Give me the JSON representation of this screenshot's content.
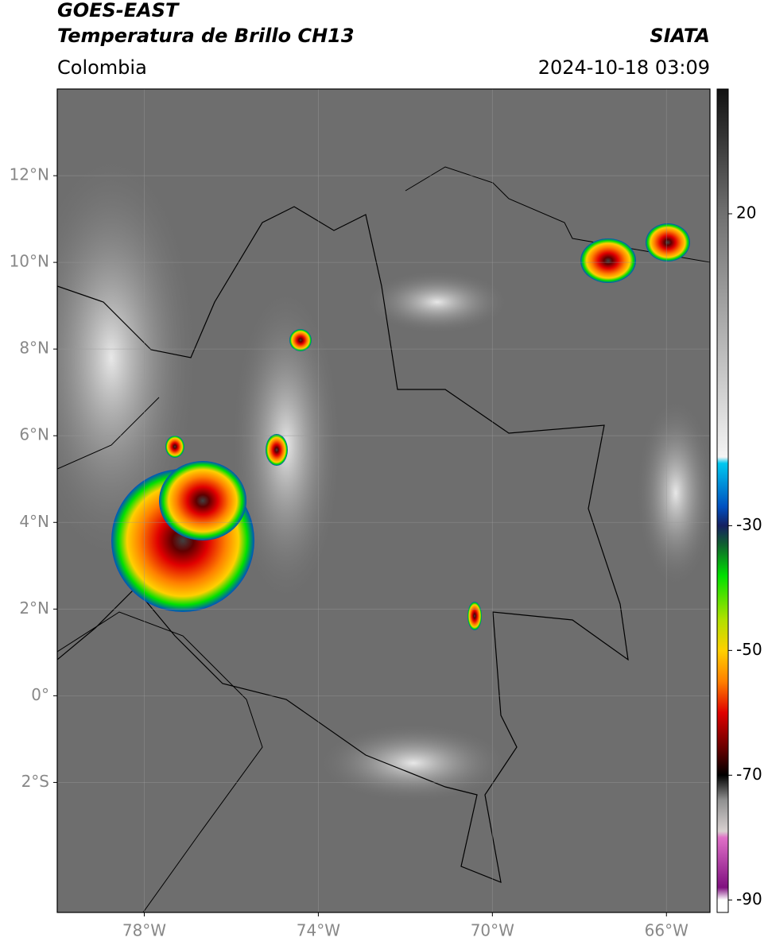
{
  "header": {
    "title": "GOES-EAST",
    "subtitle": "Temperatura de Brillo CH13",
    "region": "Colombia",
    "source": "SIATA",
    "datetime": "2024-10-18 03:09"
  },
  "map": {
    "xlim": [
      -80,
      -65
    ],
    "ylim": [
      -5,
      14
    ],
    "xticks": [
      {
        "value": -78,
        "label": "78°W"
      },
      {
        "value": -74,
        "label": "74°W"
      },
      {
        "value": -70,
        "label": "70°W"
      },
      {
        "value": -66,
        "label": "66°W"
      }
    ],
    "yticks": [
      {
        "value": 12,
        "label": "12°N"
      },
      {
        "value": 10,
        "label": "10°N"
      },
      {
        "value": 8,
        "label": "8°N"
      },
      {
        "value": 6,
        "label": "6°N"
      },
      {
        "value": 4,
        "label": "4°N"
      },
      {
        "value": 2,
        "label": "2°N"
      },
      {
        "value": 0,
        "label": "0°"
      },
      {
        "value": -2,
        "label": "2°S"
      }
    ],
    "grid": true
  },
  "colorbar": {
    "lim": [
      -92,
      40
    ],
    "ticks": [
      20,
      -30,
      -50,
      -70,
      -90
    ],
    "colormap": [
      {
        "value": 40,
        "color": "#111111"
      },
      {
        "value": 20,
        "color": "#707070"
      },
      {
        "value": -19,
        "color": "#f4f4f4"
      },
      {
        "value": -20,
        "color": "#00c8f0"
      },
      {
        "value": -27,
        "color": "#0050c0"
      },
      {
        "value": -30,
        "color": "#142060"
      },
      {
        "value": -33,
        "color": "#106030"
      },
      {
        "value": -38,
        "color": "#00e000"
      },
      {
        "value": -45,
        "color": "#b0e000"
      },
      {
        "value": -50,
        "color": "#ffd000"
      },
      {
        "value": -55,
        "color": "#ff8000"
      },
      {
        "value": -60,
        "color": "#e00000"
      },
      {
        "value": -66,
        "color": "#600000"
      },
      {
        "value": -70,
        "color": "#000000"
      },
      {
        "value": -74,
        "color": "#909090"
      },
      {
        "value": -79,
        "color": "#d8d0d0"
      },
      {
        "value": -80,
        "color": "#e070c8"
      },
      {
        "value": -88,
        "color": "#801080"
      },
      {
        "value": -90,
        "color": "#ffffff"
      }
    ]
  }
}
